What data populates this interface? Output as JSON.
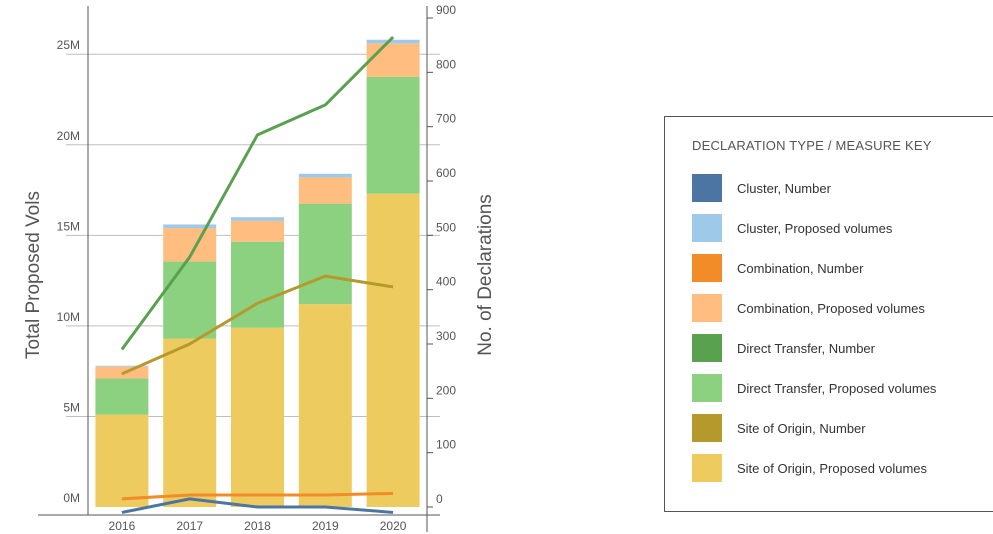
{
  "chart_data": {
    "type": "bar",
    "categories": [
      "2016",
      "2017",
      "2018",
      "2019",
      "2020"
    ],
    "stacked": true,
    "ylabel": "Total Proposed Vols",
    "y2label": "No. of Declarations",
    "ylim": [
      0,
      27000000
    ],
    "y2lim": [
      0,
      900
    ],
    "yticks": [
      {
        "value": 0,
        "label": "0M"
      },
      {
        "value": 5000000,
        "label": "5M"
      },
      {
        "value": 10000000,
        "label": "10M"
      },
      {
        "value": 15000000,
        "label": "15M"
      },
      {
        "value": 20000000,
        "label": "20M"
      },
      {
        "value": 25000000,
        "label": "25M"
      }
    ],
    "y2ticks": [
      {
        "value": 0,
        "label": "0"
      },
      {
        "value": 100,
        "label": "100"
      },
      {
        "value": 200,
        "label": "200"
      },
      {
        "value": 300,
        "label": "300"
      },
      {
        "value": 400,
        "label": "400"
      },
      {
        "value": 500,
        "label": "500"
      },
      {
        "value": 600,
        "label": "600"
      },
      {
        "value": 700,
        "label": "700"
      },
      {
        "value": 800,
        "label": "800"
      },
      {
        "value": 900,
        "label": "900"
      }
    ],
    "grid": true,
    "legend_title": "DECLARATION TYPE / MEASURE KEY",
    "legend_position": "right",
    "bar_series": [
      {
        "name": "Site of Origin, Proposed volumes",
        "color": "#eecb5e",
        "values": [
          5100000,
          9300000,
          9900000,
          11200000,
          17300000
        ]
      },
      {
        "name": "Direct Transfer, Proposed volumes",
        "color": "#8bd17f",
        "values": [
          2000000,
          4250000,
          4750000,
          5550000,
          6450000
        ]
      },
      {
        "name": "Combination, Proposed volumes",
        "color": "#ffbd80",
        "values": [
          650000,
          1850000,
          1150000,
          1450000,
          1850000
        ]
      },
      {
        "name": "Cluster, Proposed volumes",
        "color": "#9fc9e8",
        "values": [
          50000,
          200000,
          200000,
          200000,
          200000
        ]
      }
    ],
    "line_series": [
      {
        "name": "Cluster, Number",
        "color": "#4c75a3",
        "values": [
          -10,
          15,
          0,
          0,
          -10
        ]
      },
      {
        "name": "Combination, Number",
        "color": "#f28c28",
        "values": [
          15,
          22,
          22,
          22,
          25
        ]
      },
      {
        "name": "Direct Transfer, Number",
        "color": "#59a14f",
        "values": [
          290,
          460,
          685,
          740,
          865
        ]
      },
      {
        "name": "Site of Origin, Number",
        "color": "#b6992d",
        "values": [
          245,
          300,
          375,
          425,
          405
        ]
      }
    ],
    "legend_items": [
      {
        "label": "Cluster, Number",
        "color": "#4c75a3"
      },
      {
        "label": "Cluster, Proposed volumes",
        "color": "#9fc9e8"
      },
      {
        "label": "Combination, Number",
        "color": "#f28c28"
      },
      {
        "label": "Combination, Proposed volumes",
        "color": "#ffbd80"
      },
      {
        "label": "Direct Transfer, Number",
        "color": "#59a14f"
      },
      {
        "label": "Direct Transfer, Proposed volumes",
        "color": "#8bd17f"
      },
      {
        "label": "Site of Origin, Number",
        "color": "#b6992d"
      },
      {
        "label": "Site of Origin, Proposed volumes",
        "color": "#eecb5e"
      }
    ]
  }
}
